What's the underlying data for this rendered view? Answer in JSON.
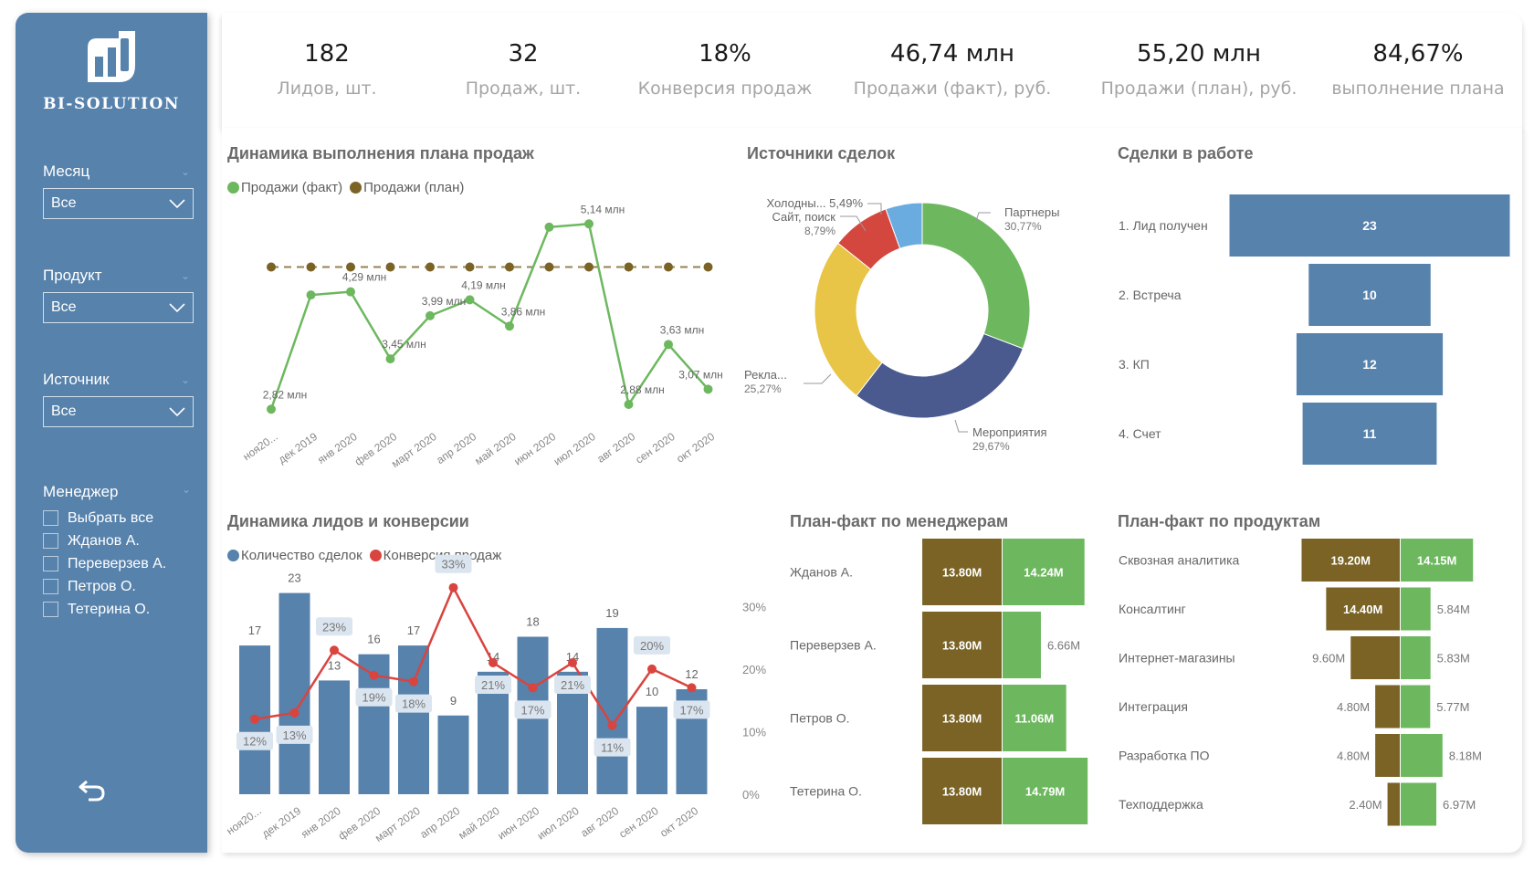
{
  "sidebar": {
    "brand": "BI-SOLUTION",
    "filters": [
      {
        "label": "Месяц",
        "value": "Все"
      },
      {
        "label": "Продукт",
        "value": "Все"
      },
      {
        "label": "Источник",
        "value": "Все"
      }
    ],
    "manager_filter": {
      "label": "Менеджер",
      "items": [
        "Выбрать все",
        "Жданов А.",
        "Переверзев А.",
        "Петров О.",
        "Тетерина О."
      ]
    },
    "back_icon": "undo-arrow-icon"
  },
  "kpis": [
    {
      "value": "182",
      "label": "Лидов, шт."
    },
    {
      "value": "32",
      "label": "Продаж, шт."
    },
    {
      "value": "18%",
      "label": "Конверсия продаж"
    },
    {
      "value": "46,74 млн",
      "label": "Продажи (факт), руб."
    },
    {
      "value": "55,20 млн",
      "label": "Продажи (план), руб."
    },
    {
      "value": "84,67%",
      "label": "выполнение плана"
    }
  ],
  "colors": {
    "sidebar": "#5682ac",
    "fact_green": "#6db85f",
    "plan_brown": "#7a6325",
    "bar_blue": "#5682ac",
    "conv_red": "#d9443f"
  },
  "chart_data": [
    {
      "id": "sales-plan",
      "type": "line",
      "title": "Динамика выполнения плана продаж",
      "legend": [
        "Продажи (факт)",
        "Продажи (план)"
      ],
      "categories": [
        "ноя20...",
        "дек 2019",
        "янв 2020",
        "фев 2020",
        "март 2020",
        "апр 2020",
        "май 2020",
        "июн 2020",
        "июл 2020",
        "авг 2020",
        "сен 2020",
        "окт 2020"
      ],
      "series": [
        {
          "name": "Продажи (факт)",
          "values": [
            2.82,
            4.25,
            4.29,
            3.45,
            3.99,
            4.19,
            3.86,
            5.1,
            5.14,
            2.88,
            3.63,
            3.07
          ],
          "labels": [
            "2,82 млн",
            "",
            "4,29 млн",
            "3,45 млн",
            "3,99 млн",
            "4,19 млн",
            "3,86 млн",
            "",
            "5,14 млн",
            "2,88 млн",
            "3,63 млн",
            "3,07 млн"
          ]
        },
        {
          "name": "Продажи (план)",
          "values": [
            4.6,
            4.6,
            4.6,
            4.6,
            4.6,
            4.6,
            4.6,
            4.6,
            4.6,
            4.6,
            4.6,
            4.6
          ]
        }
      ],
      "unit": "млн",
      "ylim": [
        2.8,
        5.2
      ]
    },
    {
      "id": "deal-sources",
      "type": "pie",
      "title": "Источники сделок",
      "slices": [
        {
          "label": "Партнеры",
          "value": 30.77,
          "text": "30,77%",
          "color": "#6db85f"
        },
        {
          "label": "Мероприятия",
          "value": 29.67,
          "text": "29,67%",
          "color": "#4a5a8f"
        },
        {
          "label": "Рекла...",
          "value": 25.27,
          "text": "25,27%",
          "color": "#e8c547"
        },
        {
          "label": "Сайт, поиск",
          "value": 8.79,
          "text": "8,79%",
          "color": "#d4473f"
        },
        {
          "label": "Холодны...",
          "value": 5.49,
          "text": "5,49%",
          "color": "#6aabe0"
        }
      ]
    },
    {
      "id": "deals-in-progress",
      "type": "bar",
      "title": "Сделки в работе",
      "categories": [
        "1. Лид получен",
        "2. Встреча",
        "3. КП",
        "4. Счет"
      ],
      "values": [
        23,
        10,
        12,
        11
      ]
    },
    {
      "id": "leads-conversion",
      "type": "bar",
      "title": "Динамика лидов и конверсии",
      "legend": [
        "Количество сделок",
        "Конверсия продаж"
      ],
      "categories": [
        "ноя20...",
        "дек 2019",
        "янв 2020",
        "фев 2020",
        "март 2020",
        "апр 2020",
        "май 2020",
        "июн 2020",
        "июл 2020",
        "авг 2020",
        "сен 2020",
        "окт 2020"
      ],
      "series": [
        {
          "name": "Количество сделок",
          "values": [
            17,
            23,
            13,
            16,
            17,
            9,
            14,
            18,
            14,
            19,
            10,
            12
          ]
        },
        {
          "name": "Конверсия продаж",
          "values": [
            12,
            13,
            23,
            19,
            18,
            33,
            21,
            17,
            21,
            11,
            20,
            17
          ],
          "unit": "%"
        }
      ],
      "y2_ticks": [
        "0%",
        "10%",
        "20%",
        "30%"
      ],
      "y2lim": [
        0,
        35
      ]
    },
    {
      "id": "plan-fact-managers",
      "type": "bar",
      "title": "План-факт по менеджерам",
      "categories": [
        "Жданов А.",
        "Переверзев А.",
        "Петров О.",
        "Тетерина О."
      ],
      "series": [
        {
          "name": "План",
          "values": [
            13.8,
            13.8,
            13.8,
            13.8
          ],
          "labels": [
            "13.80M",
            "13.80M",
            "13.80M",
            "13.80M"
          ]
        },
        {
          "name": "Факт",
          "values": [
            14.24,
            6.66,
            11.06,
            14.79
          ],
          "labels": [
            "14.24M",
            "6.66M",
            "11.06M",
            "14.79M"
          ]
        }
      ]
    },
    {
      "id": "plan-fact-products",
      "type": "bar",
      "title": "План-факт по продуктам",
      "categories": [
        "Сквозная аналитика",
        "Консалтинг",
        "Интернет-магазины",
        "Интеграция",
        "Разработка ПО",
        "Техподдержка"
      ],
      "series": [
        {
          "name": "План",
          "values": [
            19.2,
            14.4,
            9.6,
            4.8,
            4.8,
            2.4
          ],
          "labels": [
            "19.20M",
            "14.40M",
            "9.60M",
            "4.80M",
            "4.80M",
            "2.40M"
          ]
        },
        {
          "name": "Факт",
          "values": [
            14.15,
            5.84,
            5.83,
            5.77,
            8.18,
            6.97
          ],
          "labels": [
            "14.15M",
            "5.84M",
            "5.83M",
            "5.77M",
            "8.18M",
            "6.97M"
          ]
        }
      ]
    }
  ]
}
